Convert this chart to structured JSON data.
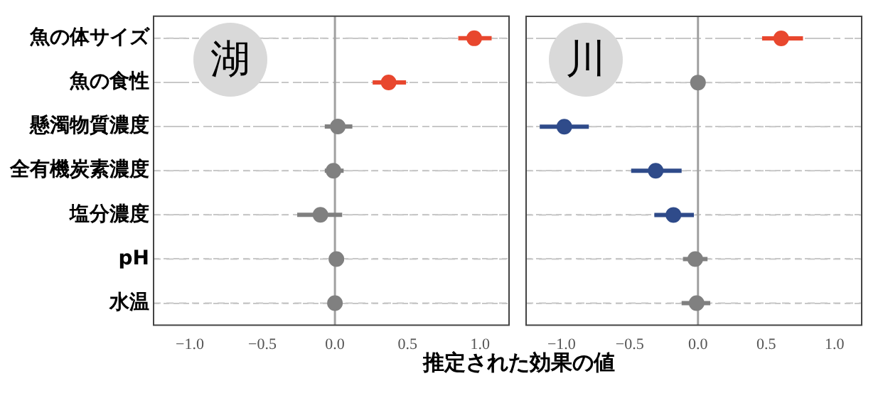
{
  "chart_data": [
    {
      "type": "scatter",
      "orientation": "horizontal",
      "title": "湖",
      "xlabel": "推定された効果の値",
      "categories": [
        "魚の体サイズ",
        "魚の食性",
        "懸濁物質濃度",
        "全有機炭素濃度",
        "塩分濃度",
        "pH",
        "水温"
      ],
      "series": [
        {
          "colors": [
            "#e8472e",
            "#e8472e",
            "#808080",
            "#808080",
            "#808080",
            "#808080",
            "#808080"
          ],
          "values": [
            0.96,
            0.37,
            0.02,
            -0.01,
            -0.1,
            0.01,
            0.0
          ],
          "errors": [
            [
              0.85,
              1.08
            ],
            [
              0.26,
              0.49
            ],
            [
              -0.07,
              0.12
            ],
            [
              -0.07,
              0.06
            ],
            [
              -0.26,
              0.05
            ],
            [
              -0.03,
              0.06
            ],
            [
              -0.04,
              0.04
            ]
          ]
        }
      ],
      "xlim": [
        -1.25,
        1.2
      ],
      "xticks": [
        {
          "value": -1,
          "label": "−1.0"
        },
        {
          "value": -0.5,
          "label": "−0.5"
        },
        {
          "value": 0,
          "label": "0.0"
        },
        {
          "value": 0.5,
          "label": "0.5"
        },
        {
          "value": 1,
          "label": "1.0"
        }
      ],
      "ref_lines": [
        {
          "axis": "x",
          "value": 0,
          "color": "#a0a0a0"
        }
      ],
      "grid": "y",
      "marker": "circle"
    },
    {
      "type": "scatter",
      "orientation": "horizontal",
      "title": "川",
      "categories": [
        null,
        null,
        null,
        null,
        null,
        null,
        null
      ],
      "series": [
        {
          "colors": [
            "#e8472e",
            "#808080",
            "#2f4b8a",
            "#2f4b8a",
            "#2f4b8a",
            "#808080",
            "#808080"
          ],
          "values": [
            0.61,
            0.0,
            -0.98,
            -0.31,
            -0.18,
            -0.02,
            -0.01
          ],
          "errors": [
            [
              0.47,
              0.77
            ],
            [
              -0.02,
              0.02
            ],
            [
              -1.16,
              -0.8
            ],
            [
              -0.49,
              -0.12
            ],
            [
              -0.32,
              -0.03
            ],
            [
              -0.11,
              0.07
            ],
            [
              -0.12,
              0.09
            ]
          ]
        }
      ],
      "xlim": [
        -1.26,
        1.2
      ],
      "xticks": [
        {
          "value": -1,
          "label": "−1.0"
        },
        {
          "value": -0.5,
          "label": "−0.5"
        },
        {
          "value": 0,
          "label": "0.0"
        },
        {
          "value": 0.5,
          "label": "0.5"
        },
        {
          "value": 1,
          "label": "1.0"
        }
      ],
      "ref_lines": [
        {
          "axis": "x",
          "value": 0,
          "color": "#a0a0a0"
        }
      ],
      "grid": "y",
      "marker": "circle",
      "tick_labels": "x"
    }
  ]
}
